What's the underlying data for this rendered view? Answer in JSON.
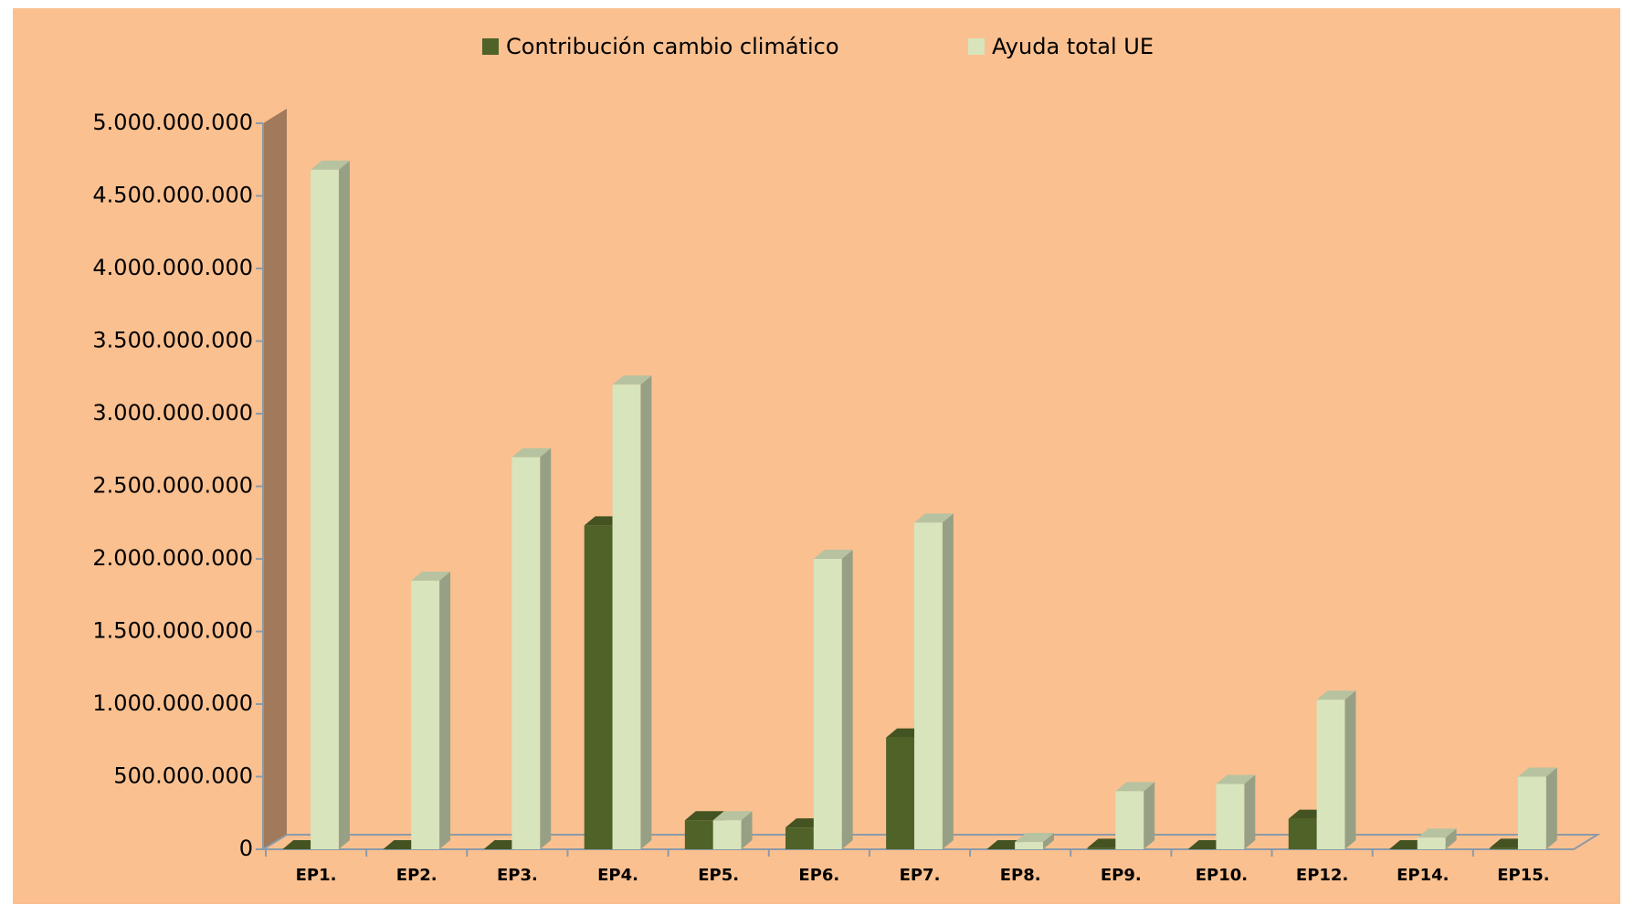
{
  "chart_data": {
    "type": "bar",
    "categories": [
      "EP1.",
      "EP2.",
      "EP3.",
      "EP4.",
      "EP5.",
      "EP6.",
      "EP7.",
      "EP8.",
      "EP9.",
      "EP10.",
      "EP12.",
      "EP14.",
      "EP15."
    ],
    "series": [
      {
        "name": "Contribución cambio climático",
        "color": "#4f6228",
        "values": [
          0,
          0,
          0,
          2230000000,
          200000000,
          150000000,
          770000000,
          0,
          10000000,
          0,
          210000000,
          0,
          10000000
        ]
      },
      {
        "name": "Ayuda total UE",
        "color": "#d7e4bc",
        "values": [
          4680000000,
          1850000000,
          2700000000,
          3200000000,
          200000000,
          2000000000,
          2250000000,
          50000000,
          400000000,
          450000000,
          1030000000,
          80000000,
          500000000
        ]
      }
    ],
    "ylim": [
      0,
      5000000000
    ],
    "yticks": [
      0,
      {
        "value": 500000000,
        "label": "500.000.000"
      },
      {
        "value": 1000000000,
        "label": "1.000.000.000"
      },
      {
        "value": 1500000000,
        "label": "1.500.000.000"
      },
      {
        "value": 2000000000,
        "label": "2.000.000.000"
      },
      {
        "value": 2500000000,
        "label": "2.500.000.000"
      },
      {
        "value": 3000000000,
        "label": "3.000.000.000"
      },
      {
        "value": 3500000000,
        "label": "3.500.000.000"
      },
      {
        "value": 4000000000,
        "label": "4.000.000.000"
      },
      {
        "value": 4500000000,
        "label": "4.500.000.000"
      },
      {
        "value": 5000000000,
        "label": "5.000.000.000"
      }
    ],
    "legend": "top"
  }
}
